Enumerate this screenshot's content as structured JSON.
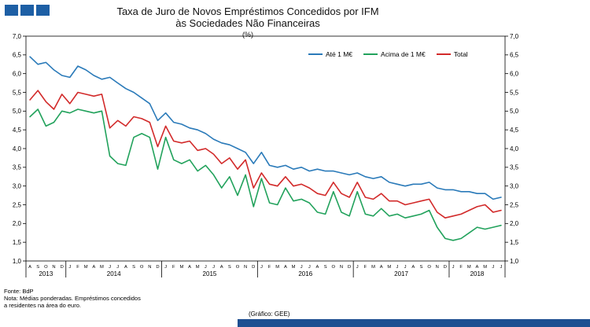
{
  "logo": {
    "square_color": "#1d5fa5"
  },
  "header": {
    "title_line1": "Taxa de Juro de Novos Empréstimos Concedidos por IFM",
    "title_line2": "às Sociedades Não Financeiras",
    "subtitle": "(%)"
  },
  "chart_data": {
    "type": "line",
    "title": "Taxa de Juro de Novos Empréstimos Concedidos por IFM às Sociedades Não Financeiras",
    "ylabel": "(%)",
    "ylim": [
      1.0,
      7.0
    ],
    "ytick_step": 0.5,
    "ytick_labels": [
      "7,0",
      "6,5",
      "6,0",
      "5,5",
      "5,0",
      "4,5",
      "4,0",
      "3,5",
      "3,0",
      "2,5",
      "2,0",
      "1,5",
      "1,0"
    ],
    "grid": false,
    "legend_position": "top-right",
    "months": [
      "A",
      "S",
      "O",
      "N",
      "D",
      "J",
      "F",
      "M",
      "A",
      "M",
      "J",
      "J",
      "A",
      "S",
      "O",
      "N",
      "D",
      "J",
      "F",
      "M",
      "A",
      "M",
      "J",
      "J",
      "A",
      "S",
      "O",
      "N",
      "D",
      "J",
      "F",
      "M",
      "A",
      "M",
      "J",
      "J",
      "A",
      "S",
      "O",
      "N",
      "D",
      "J",
      "F",
      "M",
      "A",
      "M",
      "J",
      "J",
      "A",
      "S",
      "O",
      "N",
      "D",
      "J",
      "F",
      "M",
      "A",
      "M",
      "J",
      "J"
    ],
    "years": [
      {
        "label": "2013",
        "count": 5
      },
      {
        "label": "2014",
        "count": 12
      },
      {
        "label": "2015",
        "count": 12
      },
      {
        "label": "2016",
        "count": 12
      },
      {
        "label": "2017",
        "count": 12
      },
      {
        "label": "2018",
        "count": 7
      }
    ],
    "series": [
      {
        "name": "Até 1 M€",
        "color": "#2a7ab9",
        "values": [
          6.45,
          6.25,
          6.3,
          6.1,
          5.95,
          5.9,
          6.2,
          6.1,
          5.95,
          5.85,
          5.9,
          5.75,
          5.6,
          5.5,
          5.35,
          5.2,
          4.75,
          4.95,
          4.7,
          4.65,
          4.55,
          4.5,
          4.4,
          4.25,
          4.15,
          4.1,
          4.0,
          3.9,
          3.6,
          3.9,
          3.55,
          3.5,
          3.55,
          3.45,
          3.5,
          3.4,
          3.45,
          3.4,
          3.4,
          3.35,
          3.3,
          3.35,
          3.25,
          3.2,
          3.25,
          3.1,
          3.05,
          3.0,
          3.05,
          3.05,
          3.1,
          2.95,
          2.9,
          2.9,
          2.85,
          2.85,
          2.8,
          2.8,
          2.65,
          2.7
        ]
      },
      {
        "name": "Acima de 1 M€",
        "color": "#22a25c",
        "values": [
          4.85,
          5.05,
          4.6,
          4.7,
          5.0,
          4.95,
          5.05,
          5.0,
          4.95,
          5.0,
          3.8,
          3.6,
          3.55,
          4.3,
          4.4,
          4.3,
          3.45,
          4.3,
          3.7,
          3.6,
          3.7,
          3.4,
          3.55,
          3.3,
          2.95,
          3.25,
          2.75,
          3.3,
          2.45,
          3.2,
          2.55,
          2.5,
          2.95,
          2.6,
          2.65,
          2.55,
          2.3,
          2.25,
          2.85,
          2.3,
          2.2,
          2.85,
          2.25,
          2.2,
          2.4,
          2.2,
          2.25,
          2.15,
          2.2,
          2.25,
          2.35,
          1.9,
          1.6,
          1.55,
          1.6,
          1.75,
          1.9,
          1.85,
          1.9,
          1.95
        ]
      },
      {
        "name": "Total",
        "color": "#d22a2a",
        "values": [
          5.3,
          5.55,
          5.25,
          5.05,
          5.45,
          5.2,
          5.5,
          5.45,
          5.4,
          5.45,
          4.55,
          4.75,
          4.6,
          4.85,
          4.8,
          4.7,
          4.05,
          4.6,
          4.2,
          4.15,
          4.2,
          3.95,
          4.0,
          3.85,
          3.6,
          3.75,
          3.45,
          3.7,
          2.95,
          3.35,
          3.05,
          3.0,
          3.25,
          3.0,
          3.05,
          2.95,
          2.8,
          2.75,
          3.1,
          2.8,
          2.7,
          3.1,
          2.7,
          2.65,
          2.8,
          2.6,
          2.6,
          2.5,
          2.55,
          2.6,
          2.65,
          2.3,
          2.15,
          2.2,
          2.25,
          2.35,
          2.45,
          2.5,
          2.3,
          2.35
        ]
      }
    ]
  },
  "footer": {
    "fonte": "Fonte: BdP",
    "nota_line1": "Nota: Médias ponderadas.  Empréstimos concedidos",
    "nota_line2": "a residentes na área do euro.",
    "credit": "(Gráfico: GEE)",
    "bar_color": "#1e4f91"
  }
}
